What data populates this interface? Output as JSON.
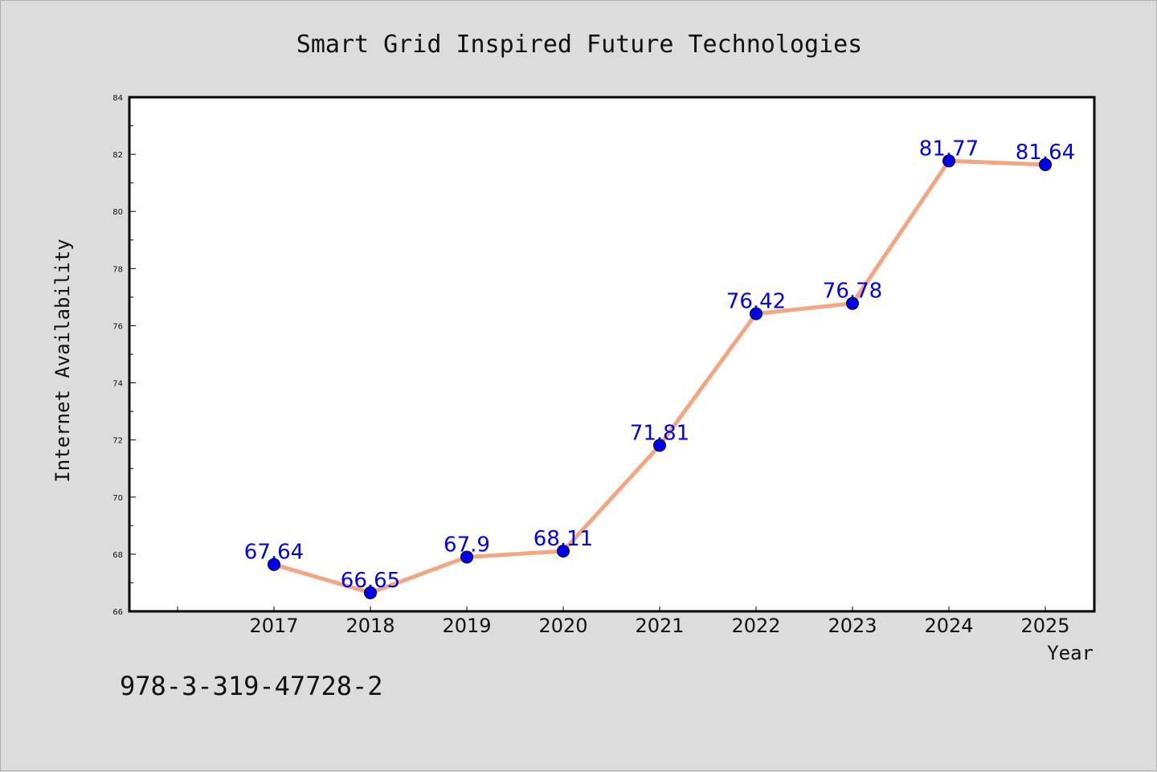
{
  "chart_data": {
    "type": "line",
    "title": "Smart Grid Inspired Future Technologies",
    "xlabel": "Year",
    "ylabel": "Internet Availability",
    "categories": [
      "2017",
      "2018",
      "2019",
      "2020",
      "2021",
      "2022",
      "2023",
      "2024",
      "2025"
    ],
    "series": [
      {
        "values": [
          67.64,
          66.65,
          67.9,
          68.11,
          71.81,
          76.42,
          76.78,
          81.77,
          81.64
        ],
        "labels": [
          "67.64",
          "66.65",
          "67.9",
          "68.11",
          "71.81",
          "76.42",
          "76.78",
          "81.77",
          "81.64"
        ],
        "line_color": "#f4a582",
        "marker_color": "#0000ee"
      }
    ],
    "ylim": [
      66,
      84
    ],
    "yticks": [
      "66",
      "68",
      "70",
      "72",
      "74",
      "76",
      "78",
      "80",
      "82",
      "84"
    ],
    "grid": false,
    "legend": "none"
  },
  "footer": {
    "isbn": "978-3-319-47728-2"
  }
}
